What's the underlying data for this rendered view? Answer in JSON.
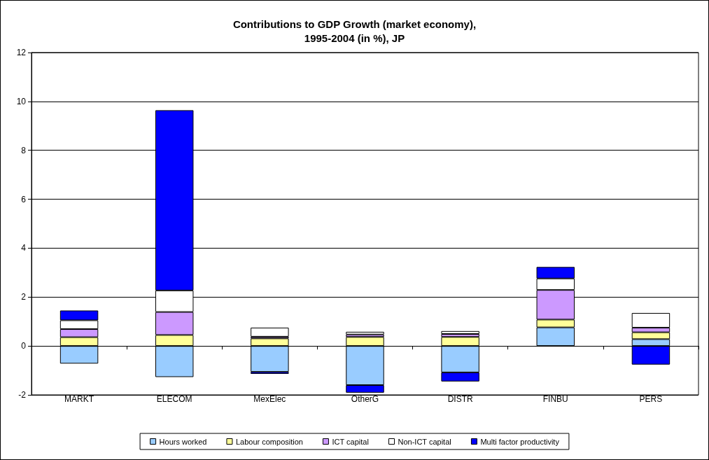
{
  "chart_data": {
    "type": "bar",
    "title": "Contributions to GDP Growth (market economy),\n1995-2004 (in %), JP",
    "stacked": true,
    "categories": [
      "MARKT",
      "ELECOM",
      "MexElec",
      "OtherG",
      "DISTR",
      "FINBU",
      "PERS"
    ],
    "series": [
      {
        "name": "Hours worked",
        "color": "#99ccff",
        "values": [
          -0.72,
          -1.27,
          -1.06,
          -1.6,
          -1.08,
          0.76,
          0.28
        ]
      },
      {
        "name": "Labour composition",
        "color": "#ffff99",
        "values": [
          0.36,
          0.45,
          0.31,
          0.37,
          0.37,
          0.32,
          0.28
        ]
      },
      {
        "name": "ICT capital",
        "color": "#cc99ff",
        "values": [
          0.33,
          0.94,
          0.07,
          0.1,
          0.12,
          1.21,
          0.19
        ]
      },
      {
        "name": "Non-ICT capital",
        "color": "#ffffff",
        "values": [
          0.36,
          0.88,
          0.37,
          0.11,
          0.12,
          0.47,
          0.6
        ]
      },
      {
        "name": "Multi factor productivity",
        "color": "#0000ff",
        "values": [
          0.4,
          7.37,
          -0.08,
          -0.31,
          -0.37,
          0.47,
          -0.76
        ]
      }
    ],
    "ylim": [
      -2,
      12
    ],
    "yticks": [
      -2,
      0,
      2,
      4,
      6,
      8,
      10,
      12
    ],
    "grid": "y",
    "legend": "bottom"
  }
}
